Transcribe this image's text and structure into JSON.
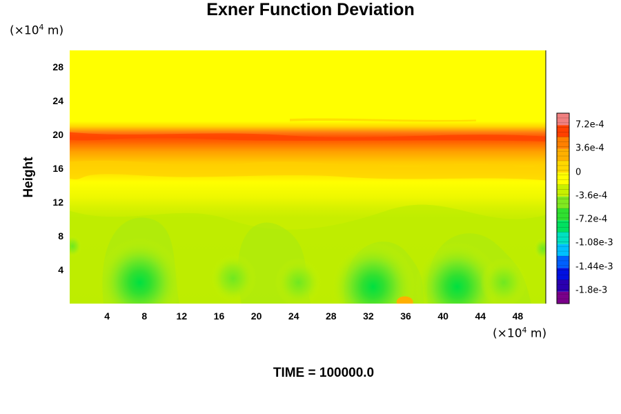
{
  "chart_data": {
    "type": "heatmap",
    "title": "Exner Function Deviation",
    "ylabel": "Height",
    "y_unit": "(×10⁴ m)",
    "x_unit": "(×10⁴ m)",
    "unit_prefix": "(×10",
    "unit_exp": "4",
    "unit_suffix": " m)",
    "xlim": [
      0,
      51
    ],
    "ylim": [
      0,
      30
    ],
    "x_ticks": [
      "4",
      "8",
      "12",
      "16",
      "20",
      "24",
      "28",
      "32",
      "36",
      "40",
      "44",
      "48"
    ],
    "y_ticks": [
      "4",
      "8",
      "12",
      "16",
      "20",
      "24",
      "28"
    ],
    "colorbar": {
      "range": [
        -0.002,
        0.0009
      ],
      "tick_labels": [
        "7.2e-4",
        "3.6e-4",
        "0",
        "-3.6e-4",
        "-7.2e-4",
        "-1.08e-3",
        "-1.44e-3",
        "-1.8e-3"
      ],
      "tick_values": [
        0.00072,
        0.00036,
        0,
        -0.00036,
        -0.00072,
        -0.00108,
        -0.00144,
        -0.0018
      ],
      "colors": [
        "#7a008a",
        "#2a00b0",
        "#0010e0",
        "#0060ff",
        "#00c0ff",
        "#00e0c0",
        "#00e060",
        "#30e030",
        "#80e820",
        "#c8f000",
        "#ffff00",
        "#ffd800",
        "#ffb000",
        "#ff8000",
        "#ff4000",
        "#f08080"
      ]
    },
    "fields": {
      "background": "#ffff00",
      "band_1_strong_positive": {
        "height_center": 20,
        "value": 0.00065,
        "color": "#ff5a0a"
      },
      "band_2_positive": {
        "height_range": [
          14,
          22
        ],
        "value": 0.00025,
        "color": "#ffb800"
      },
      "lower_layer_negative": {
        "height_range": [
          0,
          12
        ],
        "value": -0.00028,
        "color": "#c8f000"
      },
      "minima": [
        {
          "x": 7.5,
          "y": 2.5,
          "value": -0.0008
        },
        {
          "x": 32.5,
          "y": 2.0,
          "value": -0.0007
        },
        {
          "x": 41.5,
          "y": 2.0,
          "value": -0.00075
        },
        {
          "x": 17.5,
          "y": 3.0,
          "value": -0.0004
        },
        {
          "x": 46.5,
          "y": 2.5,
          "value": -0.0005
        },
        {
          "x": 24.5,
          "y": 2.5,
          "value": -0.00045
        }
      ]
    }
  },
  "footer": {
    "time_label": "TIME = 100000.0"
  }
}
